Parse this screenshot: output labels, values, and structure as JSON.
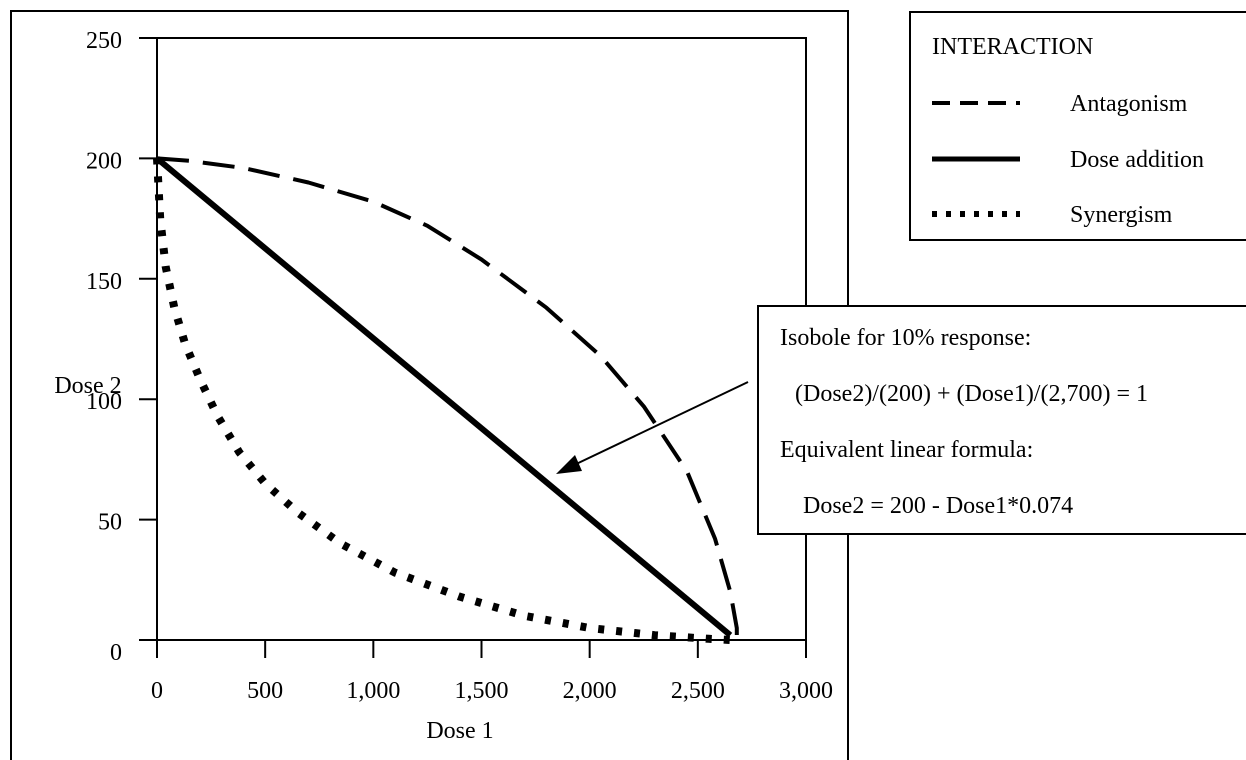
{
  "chart_data": {
    "type": "line",
    "xlabel": "Dose 1",
    "ylabel": "Dose 2",
    "xlim": [
      0,
      3000
    ],
    "ylim": [
      0,
      250
    ],
    "x_ticks": [
      0,
      500,
      1000,
      1500,
      2000,
      2500,
      3000
    ],
    "x_tick_labels": [
      "0",
      "500",
      "1,000",
      "1,500",
      "2,000",
      "2,500",
      "3,000"
    ],
    "y_ticks": [
      0,
      50,
      100,
      150,
      200,
      250
    ],
    "y_tick_labels": [
      "0",
      "50",
      "100",
      "150",
      "200",
      "250"
    ],
    "grid": false,
    "legend_placement": "top-right",
    "legend_title": "INTERACTION",
    "series": [
      {
        "name": "Antagonism",
        "style": "dashed",
        "x": [
          0,
          150,
          400,
          700,
          1000,
          1250,
          1500,
          1800,
          2050,
          2250,
          2450,
          2580,
          2650,
          2680,
          2680
        ],
        "y": [
          200,
          199,
          196,
          190,
          182,
          172,
          158,
          138,
          118,
          97,
          70,
          42,
          20,
          5,
          0
        ]
      },
      {
        "name": "Dose addition",
        "style": "solid",
        "x": [
          0,
          2650
        ],
        "y": [
          200,
          2
        ]
      },
      {
        "name": "Synergism",
        "style": "dotted",
        "x": [
          0,
          15,
          40,
          80,
          130,
          200,
          280,
          380,
          500,
          650,
          850,
          1100,
          1400,
          1700,
          2000,
          2300,
          2550,
          2650
        ],
        "y": [
          200,
          175,
          155,
          138,
          123,
          108,
          93,
          78,
          65,
          53,
          40,
          28,
          18,
          10,
          5,
          2,
          0.5,
          0
        ]
      }
    ],
    "annotation": {
      "lines": [
        "Isobole for 10% response:",
        "(Dose2)/(200) + (Dose1)/(2,700) = 1",
        "Equivalent linear formula:",
        "Dose2 = 200 - Dose1*0.074"
      ],
      "arrow_target": [
        1900,
        70
      ]
    }
  }
}
